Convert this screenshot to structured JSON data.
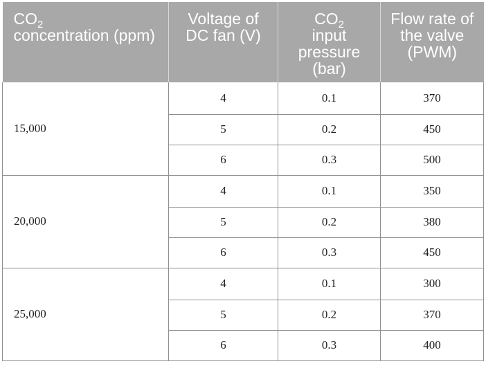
{
  "table": {
    "headers": {
      "col1_line1_prefix": "CO",
      "col1_line1_sub": "2",
      "col1_rest": "concentration (ppm)",
      "col2": "Voltage of DC fan (V)",
      "col3_prefix": "CO",
      "col3_sub": "2",
      "col3_rest": "input pressure (bar)",
      "col4": "Flow rate of the valve (PWM)"
    },
    "groups": [
      {
        "concentration": "15,000",
        "rows": [
          {
            "voltage": "4",
            "pressure": "0.1",
            "flow": "370"
          },
          {
            "voltage": "5",
            "pressure": "0.2",
            "flow": "450"
          },
          {
            "voltage": "6",
            "pressure": "0.3",
            "flow": "500"
          }
        ]
      },
      {
        "concentration": "20,000",
        "rows": [
          {
            "voltage": "4",
            "pressure": "0.1",
            "flow": "350"
          },
          {
            "voltage": "5",
            "pressure": "0.2",
            "flow": "380"
          },
          {
            "voltage": "6",
            "pressure": "0.3",
            "flow": "450"
          }
        ]
      },
      {
        "concentration": "25,000",
        "rows": [
          {
            "voltage": "4",
            "pressure": "0.1",
            "flow": "300"
          },
          {
            "voltage": "5",
            "pressure": "0.2",
            "flow": "370"
          },
          {
            "voltage": "6",
            "pressure": "0.3",
            "flow": "400"
          }
        ]
      }
    ]
  }
}
